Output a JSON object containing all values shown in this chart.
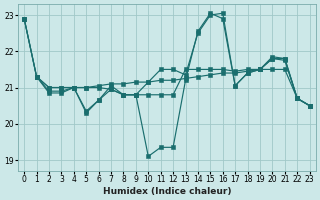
{
  "xlabel": "Humidex (Indice chaleur)",
  "ylabel": "",
  "xlim": [
    -0.5,
    23.5
  ],
  "ylim": [
    18.7,
    23.3
  ],
  "xticks": [
    0,
    1,
    2,
    3,
    4,
    5,
    6,
    7,
    8,
    9,
    10,
    11,
    12,
    13,
    14,
    15,
    16,
    17,
    18,
    19,
    20,
    21,
    22,
    23
  ],
  "yticks": [
    19,
    20,
    21,
    22,
    23
  ],
  "background_color": "#cce8e8",
  "grid_color": "#a0c8c8",
  "line_color": "#1a6e6e",
  "lines": [
    {
      "x": [
        0,
        1,
        2,
        3,
        4,
        5,
        6,
        7,
        8,
        9,
        10,
        11,
        12,
        13,
        14,
        15,
        16,
        17,
        18,
        19,
        20,
        21,
        22,
        23
      ],
      "y": [
        22.9,
        21.3,
        20.85,
        20.85,
        21.0,
        20.3,
        20.65,
        21.05,
        20.8,
        20.8,
        19.1,
        19.35,
        19.35,
        21.2,
        22.55,
        23.05,
        22.9,
        21.05,
        21.4,
        21.5,
        21.8,
        21.75,
        20.7,
        20.5
      ]
    },
    {
      "x": [
        0,
        1,
        2,
        3,
        4,
        5,
        6,
        7,
        8,
        9,
        10,
        11,
        12,
        13,
        14,
        15,
        16,
        17,
        18,
        19,
        20,
        21,
        22,
        23
      ],
      "y": [
        22.9,
        21.3,
        21.0,
        21.0,
        21.0,
        21.0,
        21.05,
        21.1,
        21.1,
        21.15,
        21.15,
        21.2,
        21.2,
        21.25,
        21.3,
        21.35,
        21.4,
        21.4,
        21.45,
        21.5,
        21.5,
        21.5,
        20.7,
        20.5
      ]
    },
    {
      "x": [
        0,
        1,
        2,
        3,
        4,
        5,
        6,
        7,
        8,
        9,
        10,
        11,
        12,
        13,
        14,
        15,
        16,
        17,
        18,
        19,
        20,
        21,
        22,
        23
      ],
      "y": [
        22.9,
        21.3,
        21.0,
        21.0,
        21.0,
        21.0,
        21.0,
        20.95,
        20.8,
        20.8,
        20.8,
        20.8,
        20.8,
        21.5,
        21.5,
        21.5,
        21.5,
        21.45,
        21.5,
        21.5,
        21.8,
        21.8,
        20.7,
        20.5
      ]
    },
    {
      "x": [
        1,
        2,
        3,
        4,
        5,
        6,
        7,
        8,
        9,
        10,
        11,
        12,
        13,
        14,
        15,
        16,
        17,
        18,
        19,
        20,
        21,
        22,
        23
      ],
      "y": [
        21.3,
        20.9,
        20.9,
        21.0,
        20.35,
        20.65,
        20.95,
        20.8,
        20.8,
        21.15,
        21.5,
        21.5,
        21.35,
        22.5,
        23.0,
        23.05,
        21.05,
        21.4,
        21.5,
        21.85,
        21.8,
        20.7,
        20.5
      ]
    }
  ]
}
